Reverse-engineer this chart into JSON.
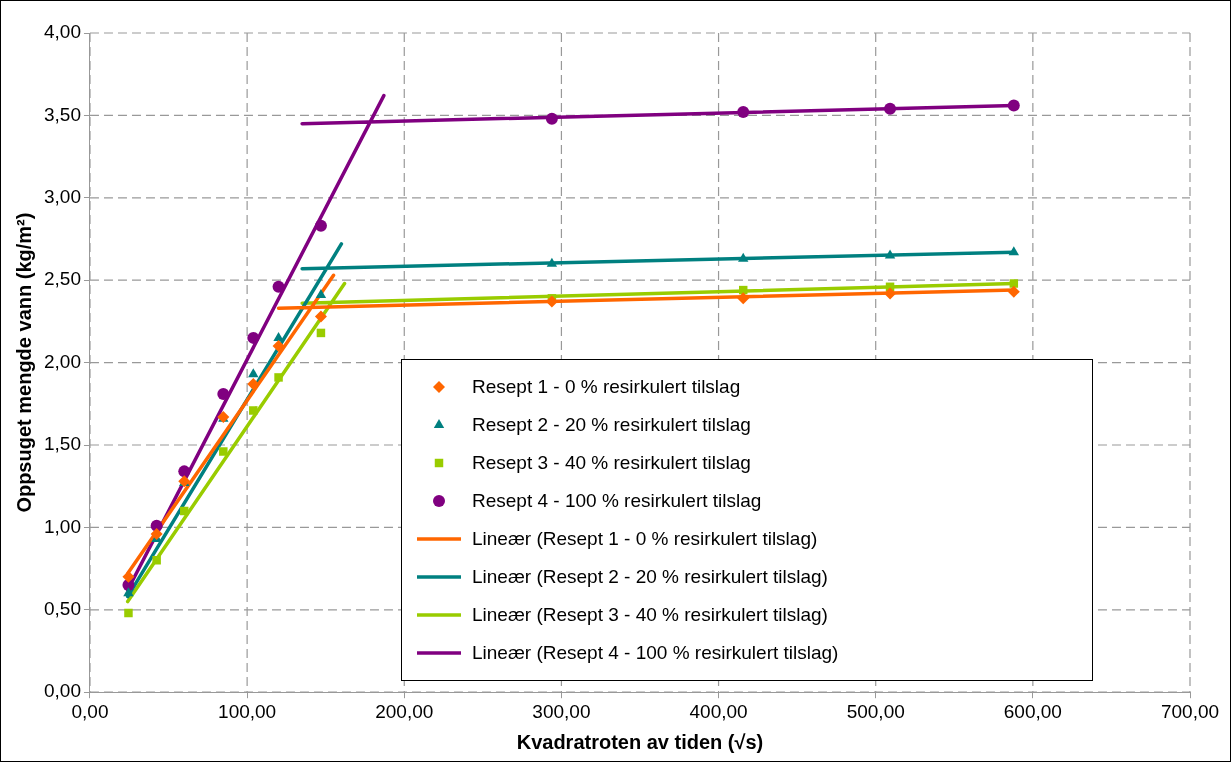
{
  "chart_data": {
    "type": "scatter",
    "xlabel": "Kvadratroten av tiden (√s)",
    "ylabel": "Oppsuget mengde vann (kg/m²)",
    "xlim": [
      0,
      700
    ],
    "ylim": [
      0,
      4
    ],
    "xticks": [
      {
        "value": 0,
        "label": "0,00"
      },
      {
        "value": 100,
        "label": "100,00"
      },
      {
        "value": 200,
        "label": "200,00"
      },
      {
        "value": 300,
        "label": "300,00"
      },
      {
        "value": 400,
        "label": "400,00"
      },
      {
        "value": 500,
        "label": "500,00"
      },
      {
        "value": 600,
        "label": "600,00"
      },
      {
        "value": 700,
        "label": "700,00"
      }
    ],
    "yticks": [
      {
        "value": 0,
        "label": "0,00"
      },
      {
        "value": 0.5,
        "label": "0,50"
      },
      {
        "value": 1,
        "label": "1,00"
      },
      {
        "value": 1.5,
        "label": "1,50"
      },
      {
        "value": 2,
        "label": "2,00"
      },
      {
        "value": 2.5,
        "label": "2,50"
      },
      {
        "value": 3,
        "label": "3,00"
      },
      {
        "value": 3.5,
        "label": "3,50"
      },
      {
        "value": 4,
        "label": "4,00"
      }
    ],
    "grid": true,
    "legend": "bottom right",
    "series": [
      {
        "name": "Resept 1 - 0 % resirkulert tilslag",
        "color": "#ff6600",
        "marker": "diamond",
        "x": [
          24.49,
          42.43,
          60,
          84.85,
          103.92,
          120,
          146.97,
          293.94,
          415.69,
          509.12,
          587.88
        ],
        "values": [
          0.7,
          0.96,
          1.28,
          1.67,
          1.87,
          2.1,
          2.28,
          2.37,
          2.39,
          2.42,
          2.43
        ]
      },
      {
        "name": "Resept 2 - 20 % resirkulert tilslag",
        "color": "#008080",
        "marker": "triangle",
        "x": [
          24.49,
          42.43,
          60,
          84.85,
          103.92,
          120,
          146.97,
          293.94,
          415.69,
          509.12,
          587.88
        ],
        "values": [
          0.6,
          0.93,
          1.27,
          1.66,
          1.93,
          2.15,
          2.41,
          2.6,
          2.63,
          2.65,
          2.67
        ]
      },
      {
        "name": "Resept 3 - 40 % resirkulert tilslag",
        "color": "#99cc00",
        "marker": "square",
        "x": [
          24.49,
          42.43,
          60,
          84.85,
          103.92,
          120,
          146.97,
          293.94,
          415.69,
          509.12,
          587.88
        ],
        "values": [
          0.48,
          0.8,
          1.1,
          1.46,
          1.71,
          1.91,
          2.18,
          2.39,
          2.44,
          2.46,
          2.48
        ]
      },
      {
        "name": "Resept 4 - 100 % resirkulert tilslag",
        "color": "#800080",
        "marker": "circle",
        "x": [
          24.49,
          42.43,
          60,
          84.85,
          103.92,
          120,
          146.97,
          293.94,
          415.69,
          509.12,
          587.88
        ],
        "values": [
          0.65,
          1.01,
          1.34,
          1.81,
          2.15,
          2.46,
          2.83,
          3.48,
          3.52,
          3.54,
          3.56
        ]
      },
      {
        "name": "Lineær (Resept 1 - 0 % resirkulert tilslag)",
        "type": "line",
        "color": "#ff6600",
        "marker": "none",
        "x": [
          24,
          155,
          null,
          120,
          588
        ],
        "values": [
          0.72,
          2.53,
          null,
          2.33,
          2.44
        ]
      },
      {
        "name": "Lineær (Resept 2 - 20 % resirkulert tilslag)",
        "type": "line",
        "color": "#008080",
        "marker": "none",
        "x": [
          24,
          160,
          null,
          135,
          588
        ],
        "values": [
          0.58,
          2.72,
          null,
          2.57,
          2.67
        ]
      },
      {
        "name": "Lineær (Resept 3 - 40 % resirkulert tilslag)",
        "type": "line",
        "color": "#99cc00",
        "marker": "none",
        "x": [
          24,
          162,
          null,
          135,
          588
        ],
        "values": [
          0.55,
          2.48,
          null,
          2.36,
          2.48
        ]
      },
      {
        "name": "Lineær (Resept 4 - 100 % resirkulert tilslag)",
        "type": "line",
        "color": "#800080",
        "marker": "none",
        "x": [
          24,
          187,
          null,
          135,
          588
        ],
        "values": [
          0.62,
          3.62,
          null,
          3.45,
          3.56
        ]
      }
    ]
  }
}
